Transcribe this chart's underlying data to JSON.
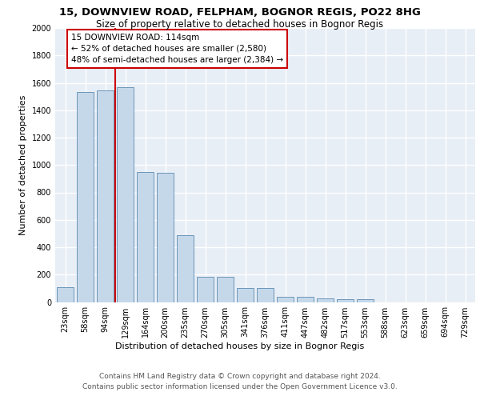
{
  "title_line1": "15, DOWNVIEW ROAD, FELPHAM, BOGNOR REGIS, PO22 8HG",
  "title_line2": "Size of property relative to detached houses in Bognor Regis",
  "xlabel": "Distribution of detached houses by size in Bognor Regis",
  "ylabel": "Number of detached properties",
  "categories": [
    "23sqm",
    "58sqm",
    "94sqm",
    "129sqm",
    "164sqm",
    "200sqm",
    "235sqm",
    "270sqm",
    "305sqm",
    "341sqm",
    "376sqm",
    "411sqm",
    "447sqm",
    "482sqm",
    "517sqm",
    "553sqm",
    "588sqm",
    "623sqm",
    "659sqm",
    "694sqm",
    "729sqm"
  ],
  "values": [
    110,
    1530,
    1545,
    1570,
    950,
    945,
    490,
    185,
    185,
    100,
    100,
    40,
    40,
    25,
    20,
    18,
    0,
    0,
    0,
    0,
    0
  ],
  "bar_color": "#c5d8ea",
  "bar_edge_color": "#5a8ab0",
  "background_color": "#e8eef6",
  "grid_color": "#ffffff",
  "property_line_x": 2.5,
  "annotation_text": "15 DOWNVIEW ROAD: 114sqm\n← 52% of detached houses are smaller (2,580)\n48% of semi-detached houses are larger (2,384) →",
  "annotation_box_facecolor": "#ffffff",
  "annotation_box_edgecolor": "#cc0000",
  "vline_color": "#cc0000",
  "ylim": [
    0,
    2000
  ],
  "yticks": [
    0,
    200,
    400,
    600,
    800,
    1000,
    1200,
    1400,
    1600,
    1800,
    2000
  ],
  "footnote": "Contains HM Land Registry data © Crown copyright and database right 2024.\nContains public sector information licensed under the Open Government Licence v3.0.",
  "title_fontsize": 9.5,
  "subtitle_fontsize": 8.5,
  "xlabel_fontsize": 8,
  "ylabel_fontsize": 8,
  "tick_fontsize": 7,
  "annotation_fontsize": 7.5,
  "footnote_fontsize": 6.5
}
